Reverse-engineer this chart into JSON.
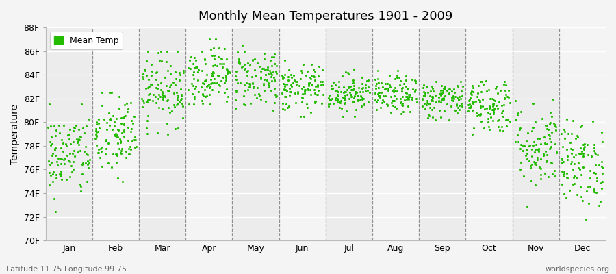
{
  "title": "Monthly Mean Temperatures 1901 - 2009",
  "ylabel": "Temperature",
  "bottom_left": "Latitude 11.75 Longitude 99.75",
  "bottom_right": "worldspecies.org",
  "legend_label": "Mean Temp",
  "dot_color": "#22bb00",
  "bg_color": "#f4f4f4",
  "band_colors": [
    "#ececec",
    "#f4f4f4"
  ],
  "ylim": [
    70,
    88
  ],
  "yticks": [
    70,
    72,
    74,
    76,
    78,
    80,
    82,
    84,
    86,
    88
  ],
  "ytick_labels": [
    "70F",
    "72F",
    "74F",
    "76F",
    "78F",
    "80F",
    "82F",
    "84F",
    "86F",
    "88F"
  ],
  "months": [
    "Jan",
    "Feb",
    "Mar",
    "Apr",
    "May",
    "Jun",
    "Jul",
    "Aug",
    "Sep",
    "Oct",
    "Nov",
    "Dec"
  ],
  "month_means": [
    77.2,
    78.8,
    82.8,
    84.0,
    83.8,
    82.8,
    82.5,
    82.3,
    82.0,
    81.5,
    78.0,
    76.5
  ],
  "month_stds": [
    1.8,
    1.8,
    1.5,
    1.3,
    1.3,
    1.0,
    0.8,
    0.8,
    0.8,
    1.2,
    1.8,
    1.8
  ],
  "month_mins": [
    70.5,
    73.0,
    79.0,
    81.5,
    81.0,
    80.5,
    80.5,
    80.0,
    79.5,
    79.0,
    71.5,
    71.0
  ],
  "month_maxs": [
    81.5,
    82.5,
    86.0,
    87.0,
    86.5,
    85.5,
    84.5,
    84.5,
    83.5,
    83.5,
    82.5,
    82.0
  ],
  "n_years": 109,
  "seed": 42
}
